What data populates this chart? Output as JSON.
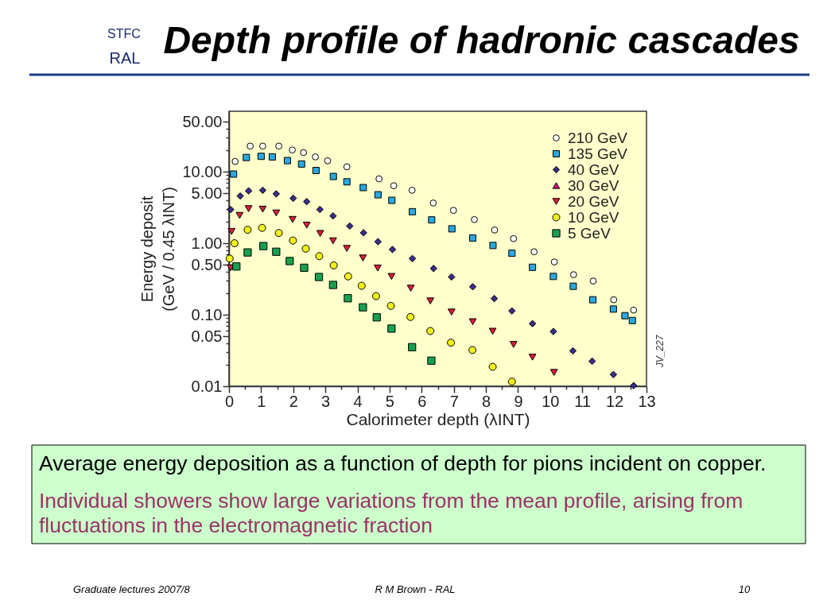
{
  "chart_data": {
    "type": "scatter",
    "title": "Depth profile of hadronic cascades",
    "xlabel": "Calorimeter depth (λINT)",
    "ylabel": "Energy deposit\n(GeV / 0.45 λINT)",
    "log": "y",
    "legend": "top right",
    "xlim": [
      0,
      13
    ],
    "xticks": [
      0,
      {
        "value": 0.5,
        "label": null
      },
      1,
      {
        "value": 1.5,
        "label": null
      },
      2,
      {
        "value": 2.5,
        "label": null
      },
      3,
      {
        "value": 3.5,
        "label": null
      },
      4,
      {
        "value": 4.5,
        "label": null
      },
      5,
      {
        "value": 5.5,
        "label": null
      },
      6,
      {
        "value": 6.5,
        "label": null
      },
      7,
      {
        "value": 7.5,
        "label": null
      },
      8,
      {
        "value": 8.5,
        "label": null
      },
      9,
      {
        "value": 9.5,
        "label": null
      },
      10,
      {
        "value": 10.5,
        "label": null
      },
      11,
      {
        "value": 11.5,
        "label": null
      },
      12,
      {
        "value": 12.5,
        "label": null
      },
      13
    ],
    "ylim": [
      0.01,
      70
    ],
    "yticks": [
      0.01,
      {
        "value": 0.02,
        "label": null
      },
      {
        "value": 0.03,
        "label": null
      },
      {
        "value": 0.04,
        "label": null
      },
      0.05,
      {
        "value": 0.06,
        "label": null
      },
      {
        "value": 0.07,
        "label": null
      },
      {
        "value": 0.08,
        "label": null
      },
      {
        "value": 0.09,
        "label": null
      },
      {
        "value": 0.1,
        "label": "0.10"
      },
      {
        "value": 0.2,
        "label": null
      },
      {
        "value": 0.3,
        "label": null
      },
      {
        "value": 0.4,
        "label": null
      },
      {
        "value": 0.5,
        "label": "0.50"
      },
      {
        "value": 0.6,
        "label": null
      },
      {
        "value": 0.7,
        "label": null
      },
      {
        "value": 0.8,
        "label": null
      },
      {
        "value": 0.9,
        "label": null
      },
      {
        "value": 1,
        "label": "1.00"
      },
      {
        "value": 2,
        "label": null
      },
      {
        "value": 3,
        "label": null
      },
      {
        "value": 4,
        "label": null
      },
      {
        "value": 5,
        "label": "5.00"
      },
      {
        "value": 6,
        "label": null
      },
      {
        "value": 7,
        "label": null
      },
      {
        "value": 8,
        "label": null
      },
      {
        "value": 9,
        "label": null
      },
      {
        "value": 10,
        "label": "10.00"
      },
      {
        "value": 20,
        "label": null
      },
      {
        "value": 30,
        "label": null
      },
      {
        "value": 40,
        "label": null
      },
      {
        "value": 50,
        "label": "50.00"
      }
    ],
    "series": [
      {
        "name": "210 GeV",
        "color": "#ffffff",
        "marker": "circle",
        "x": [
          0.19,
          0.66,
          1.05,
          1.55,
          1.97,
          2.32,
          2.69,
          3.07,
          3.67,
          4.67,
          5.13,
          5.7,
          6.36,
          6.99,
          7.64,
          8.27,
          8.86,
          9.5,
          10.13,
          10.73,
          11.34,
          11.98,
          12.6
        ],
        "values": [
          13.9,
          22.8,
          22.8,
          22.8,
          20.1,
          18.5,
          16.1,
          14.2,
          11.7,
          7.95,
          6.36,
          5.5,
          3.65,
          2.88,
          2.14,
          1.53,
          1.16,
          0.76,
          0.547,
          0.363,
          0.296,
          0.162,
          0.116
        ]
      },
      {
        "name": "135 GeV",
        "color": "#29a9e0",
        "marker": "square",
        "x": [
          0.14,
          0.54,
          1.0,
          1.35,
          1.82,
          2.26,
          2.71,
          3.25,
          3.67,
          4.18,
          4.64,
          5.07,
          5.71,
          6.31,
          6.94,
          7.59,
          8.22,
          8.81,
          9.45,
          10.1,
          10.72,
          11.33,
          11.97,
          12.33,
          12.56
        ],
        "values": [
          9.26,
          15.8,
          16.4,
          16.1,
          14.3,
          12.8,
          10.4,
          8.58,
          7.22,
          6.0,
          4.76,
          3.98,
          2.76,
          2.12,
          1.59,
          1.18,
          0.93,
          0.724,
          0.461,
          0.343,
          0.25,
          0.162,
          0.12,
          0.097,
          0.083
        ]
      },
      {
        "name": "40 GeV",
        "color": "#3b2d8c",
        "marker": "diamond",
        "x": [
          0.05,
          0.35,
          0.61,
          1.05,
          1.47,
          2.0,
          2.42,
          2.83,
          3.24,
          3.76,
          4.19,
          4.64,
          5.09,
          5.71,
          6.37,
          6.93,
          7.59,
          8.26,
          8.81,
          9.45,
          10.1,
          10.71,
          11.31,
          11.97,
          12.6
        ],
        "values": [
          2.96,
          4.58,
          5.4,
          5.5,
          4.9,
          4.25,
          3.82,
          2.96,
          2.41,
          1.74,
          1.4,
          1.05,
          0.817,
          0.611,
          0.443,
          0.337,
          0.246,
          0.168,
          0.113,
          0.0751,
          0.0582,
          0.0313,
          0.0224,
          0.0146,
          0.0102
        ]
      },
      {
        "name": "30 GeV",
        "color": "#d4147f",
        "marker": "triangle"
      },
      {
        "name": "20 GeV",
        "color": "#dd1c3a",
        "marker": "triangle-down",
        "x": [
          0.05,
          0.08,
          0.33,
          0.61,
          1.05,
          1.47,
          1.98,
          2.42,
          2.84,
          3.24,
          3.67,
          4.17,
          4.63,
          5.06,
          5.66,
          6.27,
          6.93,
          7.59,
          8.21,
          8.86,
          9.45,
          10.12
        ],
        "values": [
          0.454,
          1.46,
          2.45,
          3.04,
          2.99,
          2.65,
          2.15,
          1.79,
          1.37,
          1.08,
          0.845,
          0.622,
          0.45,
          0.343,
          0.235,
          0.156,
          0.109,
          0.0798,
          0.0587,
          0.0384,
          0.0255,
          0.0156
        ]
      },
      {
        "name": "10 GeV",
        "color": "#f2ef1a",
        "marker": "circle",
        "x": [
          0.02,
          0.17,
          0.58,
          1.03,
          1.55,
          1.99,
          2.39,
          2.81,
          3.26,
          3.71,
          4.13,
          4.58,
          5.04,
          5.65,
          6.27,
          6.91,
          7.58,
          8.21,
          8.81
        ],
        "values": [
          0.61,
          1.0,
          1.54,
          1.64,
          1.39,
          1.09,
          0.838,
          0.659,
          0.49,
          0.343,
          0.254,
          0.182,
          0.133,
          0.0931,
          0.0592,
          0.0407,
          0.0321,
          0.0187,
          0.0116
        ]
      },
      {
        "name": "5 GeV",
        "color": "#1aa04f",
        "marker": "square",
        "x": [
          0.23,
          0.58,
          1.07,
          1.47,
          1.89,
          2.34,
          2.8,
          3.24,
          3.7,
          4.17,
          4.6,
          5.06,
          5.7,
          6.3
        ],
        "values": [
          0.473,
          0.743,
          0.912,
          0.76,
          0.563,
          0.454,
          0.337,
          0.261,
          0.17,
          0.127,
          0.092,
          0.064,
          0.0352,
          0.0228
        ]
      }
    ],
    "annotations": [
      "STFC",
      "RAL",
      "JV_227",
      "Average energy deposition as a function of depth for pions incident on copper.",
      "Individual showers show large variations from the mean profile, arising from fluctuations in the electromagnetic fraction",
      "Graduate lectures 2007/8",
      "R M Brown - RAL",
      "10"
    ]
  }
}
